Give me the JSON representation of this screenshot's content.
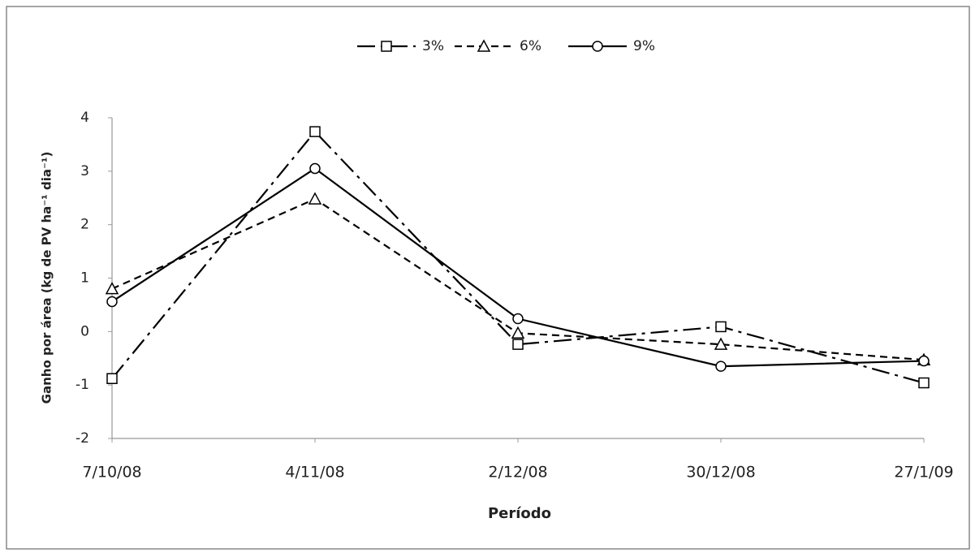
{
  "chart_data": {
    "type": "line",
    "x_label": "Período",
    "y_label": "Ganho por área (kg de PV ha⁻¹ dia⁻¹)",
    "categories": [
      "7/10/08",
      "4/11/08",
      "2/12/08",
      "30/12/08",
      "27/1/09"
    ],
    "series": [
      {
        "name": "3%",
        "color": "#000000",
        "dash": "dash-dot",
        "marker": "square",
        "values": [
          -0.88,
          3.74,
          -0.24,
          0.09,
          -0.96
        ]
      },
      {
        "name": "6%",
        "color": "#000000",
        "dash": "dashed",
        "marker": "triangle",
        "values": [
          0.8,
          2.48,
          -0.03,
          -0.24,
          -0.53
        ]
      },
      {
        "name": "9%",
        "color": "#000000",
        "dash": "solid",
        "marker": "circle",
        "values": [
          0.56,
          3.05,
          0.24,
          -0.65,
          -0.55
        ]
      }
    ],
    "ylim": [
      -2,
      4
    ],
    "yticks": [
      -2,
      -1,
      0,
      1,
      2,
      3,
      4
    ],
    "grid": false,
    "legend": "top"
  }
}
